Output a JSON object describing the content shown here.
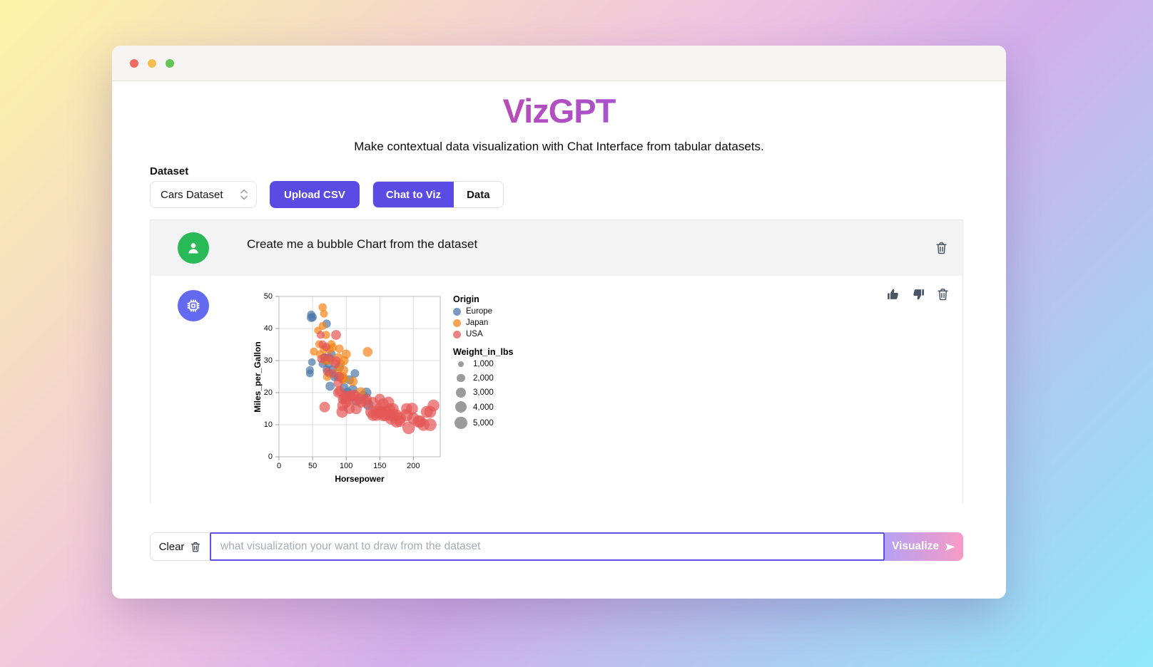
{
  "header": {
    "title": "VizGPT",
    "subtitle": "Make contextual data visualization with Chat Interface from tabular datasets."
  },
  "dataset_section": {
    "label": "Dataset",
    "selected_dataset": "Cars Dataset",
    "upload_button": "Upload CSV",
    "tabs": [
      {
        "label": "Chat to Viz",
        "active": true
      },
      {
        "label": "Data",
        "active": false
      }
    ]
  },
  "chat": {
    "user_message": "Create me a bubble Chart from the dataset"
  },
  "input_bar": {
    "clear_label": "Clear",
    "placeholder": "what visualization your want to draw from the dataset",
    "visualize_label": "Visualize"
  },
  "chart_data": {
    "type": "scatter",
    "subtype": "bubble",
    "xlabel": "Horsepower",
    "ylabel": "Miles_per_Gallon",
    "xlim": [
      0,
      240
    ],
    "ylim": [
      0,
      50
    ],
    "xticks": [
      0,
      50,
      100,
      150,
      200
    ],
    "yticks": [
      0,
      10,
      20,
      30,
      40,
      50
    ],
    "grid": true,
    "legend": {
      "color": {
        "title": "Origin",
        "entries": [
          {
            "label": "Europe",
            "color": "#4c78a8"
          },
          {
            "label": "Japan",
            "color": "#f58518"
          },
          {
            "label": "USA",
            "color": "#e45756"
          }
        ]
      },
      "size": {
        "title": "Weight_in_lbs",
        "color": "#8a8a8a",
        "entries": [
          {
            "label": "1,000",
            "value": 1000
          },
          {
            "label": "2,000",
            "value": 2000
          },
          {
            "label": "3,000",
            "value": 3000
          },
          {
            "label": "4,000",
            "value": 4000
          },
          {
            "label": "5,000",
            "value": 5000
          }
        ]
      }
    },
    "series": [
      {
        "name": "Europe",
        "color": "#4c78a8",
        "points": [
          [
            46,
            26,
            1835
          ],
          [
            46,
            27,
            1950
          ],
          [
            48,
            43.4,
            2335
          ],
          [
            48,
            44.3,
            2085
          ],
          [
            50,
            43.5,
            2190
          ],
          [
            49,
            29.5,
            1800
          ],
          [
            65,
            29,
            1975
          ],
          [
            67,
            31,
            1950
          ],
          [
            69,
            31,
            2000
          ],
          [
            70,
            30,
            2150
          ],
          [
            71,
            27.2,
            1990
          ],
          [
            71,
            41.5,
            2144
          ],
          [
            74,
            29,
            2219
          ],
          [
            75,
            26,
            2246
          ],
          [
            76,
            30.5,
            2230
          ],
          [
            76,
            22,
            2511
          ],
          [
            78,
            32,
            2188
          ],
          [
            80,
            27.2,
            2290
          ],
          [
            83,
            25,
            2605
          ],
          [
            88,
            25,
            2650
          ],
          [
            90,
            28,
            2670
          ],
          [
            95,
            24.5,
            2375
          ],
          [
            97,
            21.5,
            2600
          ],
          [
            102,
            20,
            2891
          ],
          [
            105,
            24,
            2533
          ],
          [
            110,
            21,
            2600
          ],
          [
            113,
            26,
            2234
          ],
          [
            115,
            17.5,
            3090
          ],
          [
            125,
            19,
            3140
          ],
          [
            130,
            20,
            3150
          ],
          [
            133,
            16.2,
            3410
          ]
        ]
      },
      {
        "name": "Japan",
        "color": "#f58518",
        "points": [
          [
            52,
            32.8,
            1985
          ],
          [
            58,
            39.4,
            1755
          ],
          [
            60,
            35.1,
            1985
          ],
          [
            61,
            32,
            1905
          ],
          [
            65,
            46.6,
            2110
          ],
          [
            65,
            40.8,
            1975
          ],
          [
            67,
            44.6,
            1850
          ],
          [
            67,
            33.5,
            2145
          ],
          [
            68,
            30,
            2135
          ],
          [
            70,
            38,
            2070
          ],
          [
            72,
            25,
            2265
          ],
          [
            75,
            30,
            2155
          ],
          [
            75,
            33.5,
            2210
          ],
          [
            78,
            35.1,
            2075
          ],
          [
            80,
            34.1,
            2188
          ],
          [
            88,
            27,
            2130
          ],
          [
            88,
            31,
            2392
          ],
          [
            90,
            33.7,
            2188
          ],
          [
            92,
            29,
            2288
          ],
          [
            95,
            24,
            2372
          ],
          [
            95,
            25,
            2515
          ],
          [
            96,
            24.5,
            2665
          ],
          [
            97,
            27,
            2156
          ],
          [
            97,
            30,
            2489
          ],
          [
            100,
            32,
            2615
          ],
          [
            110,
            23.5,
            2725
          ],
          [
            122,
            20.2,
            2807
          ],
          [
            132,
            32.7,
            2910
          ]
        ]
      },
      {
        "name": "USA",
        "color": "#e45756",
        "points": [
          [
            62,
            38,
            1915
          ],
          [
            63,
            30.5,
            2051
          ],
          [
            65,
            35,
            2110
          ],
          [
            68,
            31,
            1970
          ],
          [
            68,
            15.5,
            3440
          ],
          [
            70,
            34.2,
            2200
          ],
          [
            72,
            26.5,
            2223
          ],
          [
            75,
            30.9,
            2230
          ],
          [
            80,
            26,
            2220
          ],
          [
            84,
            29,
            2525
          ],
          [
            85,
            38,
            3015
          ],
          [
            85,
            29.9,
            2620
          ],
          [
            88,
            23,
            2639
          ],
          [
            90,
            25,
            2655
          ],
          [
            88,
            20,
            3021
          ],
          [
            90,
            20.5,
            3039
          ],
          [
            94,
            14,
            4054
          ],
          [
            95,
            18,
            3102
          ],
          [
            95,
            16,
            3785
          ],
          [
            97,
            18.5,
            3265
          ],
          [
            100,
            19,
            3282
          ],
          [
            100,
            18,
            3288
          ],
          [
            100,
            17,
            3329
          ],
          [
            105,
            15,
            3459
          ],
          [
            105,
            19,
            3381
          ],
          [
            110,
            19,
            3365
          ],
          [
            110,
            18,
            3730
          ],
          [
            112,
            19.2,
            3775
          ],
          [
            115,
            15,
            3694
          ],
          [
            120,
            18,
            3820
          ],
          [
            122,
            17,
            3615
          ],
          [
            130,
            17,
            3725
          ],
          [
            130,
            18,
            3504
          ],
          [
            137,
            14,
            4042
          ],
          [
            140,
            17,
            3449
          ],
          [
            140,
            13,
            4215
          ],
          [
            145,
            13,
            4055
          ],
          [
            145,
            14,
            4440
          ],
          [
            150,
            18,
            3436
          ],
          [
            150,
            15,
            3761
          ],
          [
            150,
            14,
            4257
          ],
          [
            153,
            14,
            4034
          ],
          [
            155,
            13,
            4502
          ],
          [
            155,
            16.5,
            3880
          ],
          [
            158,
            13,
            4363
          ],
          [
            160,
            14,
            3609
          ],
          [
            163,
            17,
            3940
          ],
          [
            165,
            15,
            3693
          ],
          [
            165,
            13,
            4154
          ],
          [
            167,
            12,
            4906
          ],
          [
            170,
            13,
            4654
          ],
          [
            170,
            15,
            3563
          ],
          [
            175,
            13,
            4100
          ],
          [
            175,
            11,
            4464
          ],
          [
            180,
            12,
            4499
          ],
          [
            180,
            11,
            3664
          ],
          [
            190,
            13,
            4746
          ],
          [
            190,
            15,
            3850
          ],
          [
            193,
            9,
            4732
          ],
          [
            198,
            15,
            4341
          ],
          [
            200,
            12,
            4220
          ],
          [
            208,
            11,
            4633
          ],
          [
            210,
            11,
            4382
          ],
          [
            215,
            10,
            4615
          ],
          [
            220,
            14,
            4354
          ],
          [
            225,
            14,
            4425
          ],
          [
            225,
            10,
            4951
          ],
          [
            230,
            16,
            4278
          ]
        ]
      }
    ]
  }
}
